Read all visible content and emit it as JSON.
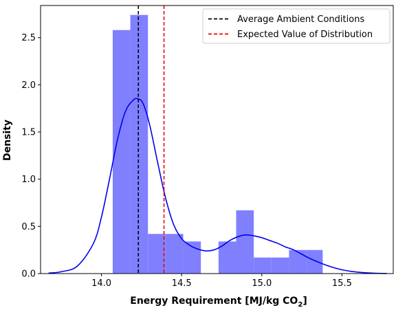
{
  "chart_data": {
    "type": "histogram",
    "xlabel": "Energy Requirement [MJ/kg CO",
    "xlabel_sub": "2",
    "xlabel_end": "]",
    "ylabel": "Density",
    "xlim": [
      13.62,
      15.82
    ],
    "ylim": [
      0.0,
      2.84
    ],
    "xticks": [
      14.0,
      14.5,
      15.0,
      15.5
    ],
    "xtick_labels": [
      "14.0",
      "14.5",
      "15.0",
      "15.5"
    ],
    "yticks": [
      0.0,
      0.5,
      1.0,
      1.5,
      2.0,
      2.5
    ],
    "ytick_labels": [
      "0.0",
      "0.5",
      "1.0",
      "1.5",
      "2.0",
      "2.5"
    ],
    "grid": false,
    "legend_placement": "top-right",
    "histogram": {
      "color": "#8080ff",
      "bins": [
        {
          "x0": 14.07,
          "x1": 14.18,
          "density": 2.58
        },
        {
          "x0": 14.18,
          "x1": 14.29,
          "density": 2.74
        },
        {
          "x0": 14.29,
          "x1": 14.4,
          "density": 0.42
        },
        {
          "x0": 14.4,
          "x1": 14.51,
          "density": 0.42
        },
        {
          "x0": 14.51,
          "x1": 14.62,
          "density": 0.34
        },
        {
          "x0": 14.62,
          "x1": 14.73,
          "density": 0.0
        },
        {
          "x0": 14.73,
          "x1": 14.84,
          "density": 0.34
        },
        {
          "x0": 14.84,
          "x1": 14.95,
          "density": 0.67
        },
        {
          "x0": 14.95,
          "x1": 15.06,
          "density": 0.17
        },
        {
          "x0": 15.06,
          "x1": 15.17,
          "density": 0.17
        },
        {
          "x0": 15.17,
          "x1": 15.28,
          "density": 0.25
        },
        {
          "x0": 15.28,
          "x1": 15.38,
          "density": 0.25
        }
      ]
    },
    "kde": {
      "color": "#0000ee",
      "x": [
        13.67,
        13.75,
        13.85,
        13.95,
        14.0,
        14.05,
        14.1,
        14.15,
        14.2,
        14.23,
        14.26,
        14.3,
        14.35,
        14.4,
        14.45,
        14.5,
        14.55,
        14.6,
        14.65,
        14.7,
        14.75,
        14.8,
        14.85,
        14.9,
        14.95,
        15.0,
        15.05,
        15.1,
        15.15,
        15.2,
        15.3,
        15.4,
        15.5,
        15.6,
        15.7,
        15.78
      ],
      "y": [
        0.005,
        0.02,
        0.08,
        0.32,
        0.6,
        1.0,
        1.42,
        1.72,
        1.84,
        1.85,
        1.8,
        1.58,
        1.18,
        0.8,
        0.52,
        0.37,
        0.3,
        0.26,
        0.24,
        0.25,
        0.29,
        0.35,
        0.39,
        0.41,
        0.4,
        0.38,
        0.35,
        0.32,
        0.28,
        0.25,
        0.16,
        0.09,
        0.04,
        0.015,
        0.004,
        0.001
      ]
    },
    "vlines": [
      {
        "name": "Average Ambient Conditions",
        "x": 14.23,
        "color": "#000000"
      },
      {
        "name": "Expected Value of Distribution",
        "x": 14.39,
        "color": "#ee0000"
      }
    ]
  }
}
